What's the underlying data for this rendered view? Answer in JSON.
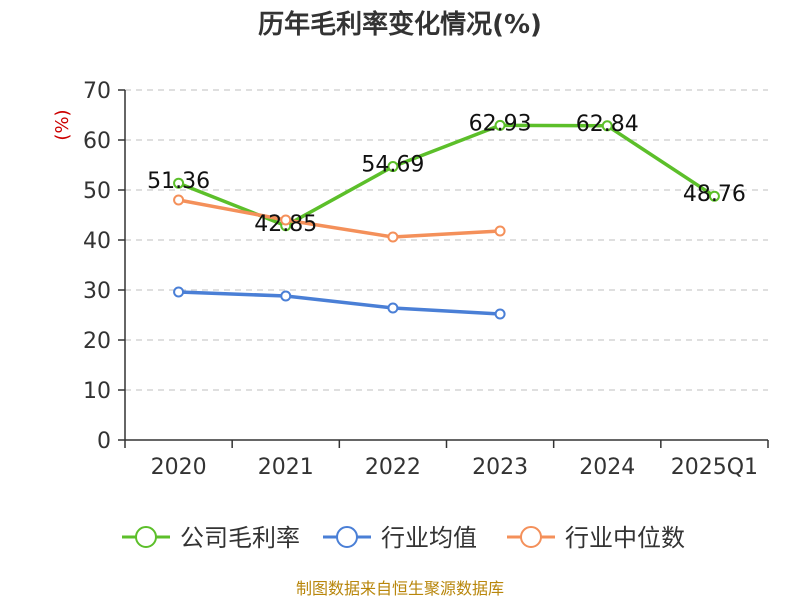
{
  "chart_data": {
    "type": "line",
    "title": "历年毛利率变化情况(%)",
    "ylabel": "(%)",
    "xlabel": "",
    "categories": [
      "2020",
      "2021",
      "2022",
      "2023",
      "2024",
      "2025Q1"
    ],
    "ylim": [
      0,
      70
    ],
    "yticks": [
      0,
      10,
      20,
      30,
      40,
      50,
      60,
      70
    ],
    "grid": true,
    "legend_position": "bottom",
    "series": [
      {
        "name": "公司毛利率",
        "color": "#5cbf2a",
        "values": [
          51.36,
          42.85,
          54.69,
          62.93,
          62.84,
          48.76
        ],
        "labels": [
          "51.36",
          "42.85",
          "54.69",
          "62.93",
          "62.84",
          "48.76"
        ]
      },
      {
        "name": "行业均值",
        "color": "#4a7fd6",
        "values": [
          29.6,
          28.8,
          26.4,
          25.2,
          null,
          null
        ]
      },
      {
        "name": "行业中位数",
        "color": "#f4905a",
        "values": [
          48.0,
          44.0,
          40.6,
          41.8,
          null,
          null
        ]
      }
    ],
    "source": "制图数据来自恒生聚源数据库"
  }
}
